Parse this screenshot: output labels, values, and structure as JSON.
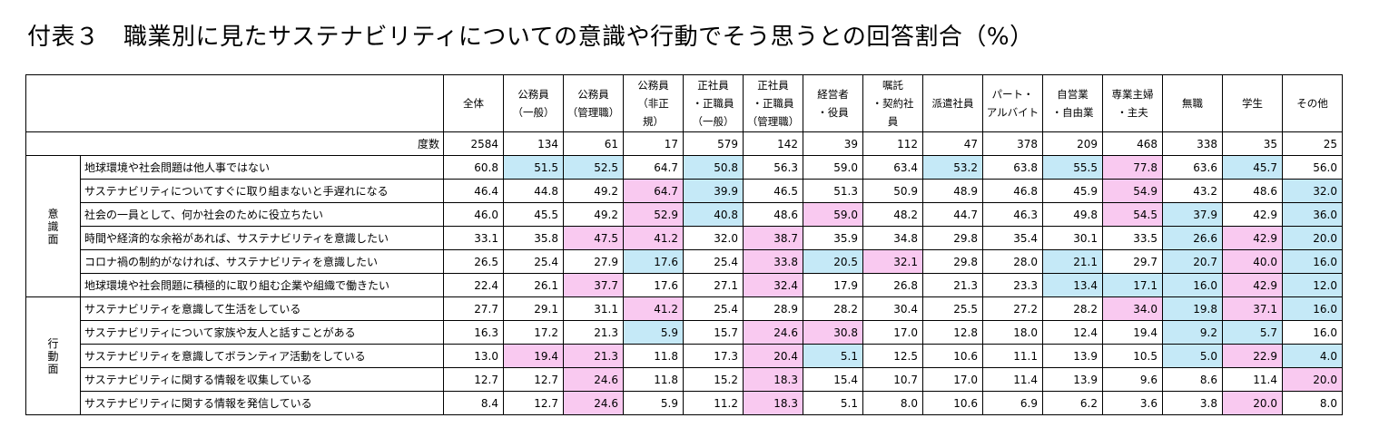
{
  "title": "付表３　職業別に見たサステナビリティについての意識や行動でそう思うとの回答割合（%）",
  "colors": {
    "highlight_low": "#c5e9f7",
    "highlight_high": "#f9c9f0",
    "border": "#000000"
  },
  "columns": [
    "全体",
    "公務員\n（一般）",
    "公務員\n（管理職）",
    "公務員\n（非正\n規）",
    "正社員\n・正職員\n（一般）",
    "正社員\n・正職員\n（管理職）",
    "経営者\n・役員",
    "嘱託\n・契約社\n員",
    "派遣社員",
    "パート・\nアルバイト",
    "自営業\n・自由業",
    "専業主婦\n・主夫",
    "無職",
    "学生",
    "その他"
  ],
  "count_label": "度数",
  "counts": [
    "2584",
    "134",
    "61",
    "17",
    "579",
    "142",
    "39",
    "112",
    "47",
    "378",
    "209",
    "468",
    "338",
    "35",
    "25"
  ],
  "sections": [
    {
      "label": "意\n識\n面",
      "rows": [
        {
          "item": "地球環境や社会問題は他人事ではない",
          "values": [
            "60.8",
            "51.5",
            "52.5",
            "64.7",
            "50.8",
            "56.3",
            "59.0",
            "63.4",
            "53.2",
            "63.8",
            "55.5",
            "77.8",
            "63.6",
            "45.7",
            "56.0"
          ],
          "hl": [
            "",
            "b",
            "b",
            "",
            "b",
            "",
            "",
            "",
            "b",
            "",
            "b",
            "p",
            "",
            "b",
            ""
          ]
        },
        {
          "item": "サステナビリティについてすぐに取り組まないと手遅れになる",
          "values": [
            "46.4",
            "44.8",
            "49.2",
            "64.7",
            "39.9",
            "46.5",
            "51.3",
            "50.9",
            "48.9",
            "46.8",
            "45.9",
            "54.9",
            "43.2",
            "48.6",
            "32.0"
          ],
          "hl": [
            "",
            "",
            "",
            "p",
            "b",
            "",
            "",
            "",
            "",
            "",
            "",
            "p",
            "",
            "",
            "b"
          ]
        },
        {
          "item": "社会の一員として、何か社会のために役立ちたい",
          "values": [
            "46.0",
            "45.5",
            "49.2",
            "52.9",
            "40.8",
            "48.6",
            "59.0",
            "48.2",
            "44.7",
            "46.3",
            "49.8",
            "54.5",
            "37.9",
            "42.9",
            "36.0"
          ],
          "hl": [
            "",
            "",
            "",
            "p",
            "b",
            "",
            "p",
            "",
            "",
            "",
            "",
            "p",
            "b",
            "",
            "b"
          ]
        },
        {
          "item": "時間や経済的な余裕があれば、サステナビリティを意識したい",
          "values": [
            "33.1",
            "35.8",
            "47.5",
            "41.2",
            "32.0",
            "38.7",
            "35.9",
            "34.8",
            "29.8",
            "35.4",
            "30.1",
            "33.5",
            "26.6",
            "42.9",
            "20.0"
          ],
          "hl": [
            "",
            "",
            "p",
            "p",
            "",
            "p",
            "",
            "",
            "",
            "",
            "",
            "",
            "b",
            "p",
            "b"
          ]
        },
        {
          "item": "コロナ禍の制約がなければ、サステナビリティを意識したい",
          "values": [
            "26.5",
            "25.4",
            "27.9",
            "17.6",
            "25.4",
            "33.8",
            "20.5",
            "32.1",
            "29.8",
            "28.0",
            "21.1",
            "29.7",
            "20.7",
            "40.0",
            "16.0"
          ],
          "hl": [
            "",
            "",
            "",
            "b",
            "",
            "p",
            "b",
            "p",
            "",
            "",
            "b",
            "",
            "b",
            "p",
            "b"
          ]
        },
        {
          "item": "地球環境や社会問題に積極的に取り組む企業や組織で働きたい",
          "values": [
            "22.4",
            "26.1",
            "37.7",
            "17.6",
            "27.1",
            "32.4",
            "17.9",
            "26.8",
            "21.3",
            "23.3",
            "13.4",
            "17.1",
            "16.0",
            "42.9",
            "12.0"
          ],
          "hl": [
            "",
            "",
            "p",
            "",
            "",
            "p",
            "",
            "",
            "",
            "",
            "b",
            "b",
            "b",
            "p",
            "b"
          ]
        }
      ]
    },
    {
      "label": "行\n動\n面",
      "rows": [
        {
          "item": "サステナビリティを意識して生活をしている",
          "values": [
            "27.7",
            "29.1",
            "31.1",
            "41.2",
            "25.4",
            "28.9",
            "28.2",
            "30.4",
            "25.5",
            "27.2",
            "28.2",
            "34.0",
            "19.8",
            "37.1",
            "16.0"
          ],
          "hl": [
            "",
            "",
            "",
            "p",
            "",
            "",
            "",
            "",
            "",
            "",
            "",
            "p",
            "b",
            "p",
            "b"
          ]
        },
        {
          "item": "サステナビリティについて家族や友人と話すことがある",
          "values": [
            "16.3",
            "17.2",
            "21.3",
            "5.9",
            "15.7",
            "24.6",
            "30.8",
            "17.0",
            "12.8",
            "18.0",
            "12.4",
            "19.4",
            "9.2",
            "5.7",
            "16.0"
          ],
          "hl": [
            "",
            "",
            "",
            "b",
            "",
            "p",
            "p",
            "",
            "",
            "",
            "",
            "",
            "b",
            "b",
            ""
          ]
        },
        {
          "item": "サステナビリティを意識してボランティア活動をしている",
          "values": [
            "13.0",
            "19.4",
            "21.3",
            "11.8",
            "17.3",
            "20.4",
            "5.1",
            "12.5",
            "10.6",
            "11.1",
            "13.9",
            "10.5",
            "5.0",
            "22.9",
            "4.0"
          ],
          "hl": [
            "",
            "p",
            "p",
            "",
            "",
            "p",
            "b",
            "",
            "",
            "",
            "",
            "",
            "b",
            "p",
            "b"
          ]
        },
        {
          "item": "サステナビリティに関する情報を収集している",
          "values": [
            "12.7",
            "12.7",
            "24.6",
            "11.8",
            "15.2",
            "18.3",
            "15.4",
            "10.7",
            "17.0",
            "11.4",
            "13.9",
            "9.6",
            "8.6",
            "11.4",
            "20.0"
          ],
          "hl": [
            "",
            "",
            "p",
            "",
            "",
            "p",
            "",
            "",
            "",
            "",
            "",
            "",
            "",
            "",
            "p"
          ]
        },
        {
          "item": "サステナビリティに関する情報を発信している",
          "values": [
            "8.4",
            "12.7",
            "24.6",
            "5.9",
            "11.2",
            "18.3",
            "5.1",
            "8.0",
            "10.6",
            "6.9",
            "6.2",
            "3.6",
            "3.8",
            "20.0",
            "8.0"
          ],
          "hl": [
            "",
            "",
            "p",
            "",
            "",
            "p",
            "",
            "",
            "",
            "",
            "",
            "",
            "",
            "p",
            ""
          ]
        }
      ]
    }
  ]
}
